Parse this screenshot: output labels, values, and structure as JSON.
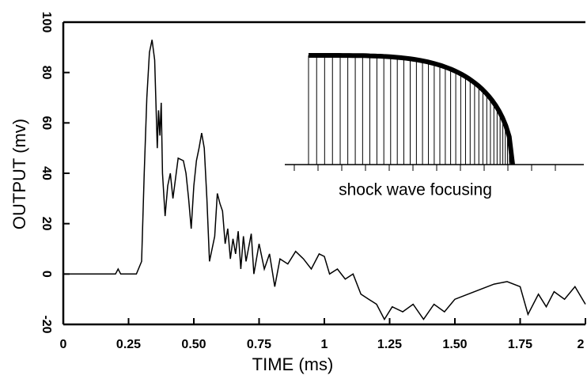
{
  "chart_data": {
    "type": "line",
    "x_label": "TIME  (ms)",
    "y_label": "OUTPUT (mv)",
    "annotation": "shock wave focusing",
    "xlim": [
      0,
      2
    ],
    "xticks": [
      0,
      0.25,
      {
        "value": 0.5,
        "label": "0.50"
      },
      0.75,
      1,
      1.25,
      {
        "value": 1.5,
        "label": "1.50"
      },
      1.75,
      2
    ],
    "ylim": [
      -20,
      100
    ],
    "yticks": [
      -20,
      0,
      20,
      40,
      60,
      80,
      100
    ],
    "color": "#000000",
    "x": [
      0,
      0.2,
      0.21,
      0.22,
      0.28,
      0.3,
      0.31,
      0.32,
      0.33,
      0.34,
      0.35,
      0.36,
      0.365,
      0.37,
      0.375,
      0.38,
      0.39,
      0.4,
      0.41,
      0.42,
      0.43,
      0.44,
      0.46,
      0.47,
      0.48,
      0.49,
      0.5,
      0.51,
      0.52,
      0.53,
      0.54,
      0.55,
      0.56,
      0.57,
      0.58,
      0.59,
      0.6,
      0.61,
      0.62,
      0.63,
      0.64,
      0.65,
      0.66,
      0.67,
      0.68,
      0.69,
      0.7,
      0.72,
      0.73,
      0.75,
      0.77,
      0.79,
      0.81,
      0.83,
      0.86,
      0.89,
      0.92,
      0.95,
      0.98,
      1.0,
      1.02,
      1.05,
      1.08,
      1.11,
      1.14,
      1.17,
      1.2,
      1.23,
      1.26,
      1.3,
      1.34,
      1.38,
      1.42,
      1.46,
      1.5,
      1.55,
      1.6,
      1.65,
      1.7,
      1.75,
      1.78,
      1.82,
      1.85,
      1.88,
      1.92,
      1.96,
      2.0
    ],
    "values": [
      0,
      0,
      2,
      0,
      0,
      5,
      40,
      70,
      88,
      93,
      85,
      50,
      65,
      55,
      68,
      40,
      23,
      35,
      40,
      30,
      38,
      46,
      45,
      40,
      30,
      18,
      35,
      45,
      50,
      56,
      50,
      30,
      5,
      10,
      15,
      32,
      28,
      25,
      12,
      18,
      6,
      14,
      8,
      17,
      2,
      15,
      5,
      16,
      0,
      12,
      2,
      8,
      -5,
      6,
      4,
      9,
      6,
      2,
      8,
      7,
      0,
      2,
      -2,
      0,
      -8,
      -10,
      -12,
      -18,
      -13,
      -15,
      -12,
      -18,
      -12,
      -15,
      -10,
      -8,
      -6,
      -4,
      -3,
      -5,
      -16,
      -8,
      -13,
      -7,
      -10,
      -5,
      -12
    ]
  }
}
